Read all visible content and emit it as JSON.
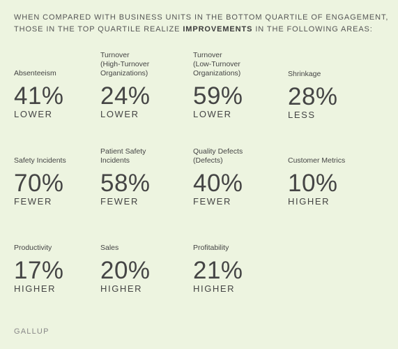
{
  "heading": {
    "part1": "WHEN COMPARED WITH BUSINESS UNITS IN THE BOTTOM QUARTILE OF ENGAGEMENT,",
    "part2": "THOSE IN THE TOP QUARTILE REALIZE",
    "bold": "IMPROVEMENTS",
    "part3": "IN THE FOLLOWING AREAS:"
  },
  "metrics": [
    {
      "label1": "Absenteeism",
      "label2": "",
      "label3": "",
      "value": "41%",
      "direction": "LOWER"
    },
    {
      "label1": "Turnover",
      "label2": "(High-Turnover",
      "label3": "Organizations)",
      "value": "24%",
      "direction": "LOWER"
    },
    {
      "label1": "Turnover",
      "label2": "(Low-Turnover",
      "label3": "Organizations)",
      "value": "59%",
      "direction": "LOWER"
    },
    {
      "label1": "Shrinkage",
      "label2": "",
      "label3": "",
      "value": "28%",
      "direction": "LESS"
    },
    {
      "label1": "Safety Incidents",
      "label2": "",
      "label3": "",
      "value": "70%",
      "direction": "FEWER"
    },
    {
      "label1": "Patient Safety",
      "label2": "Incidents",
      "label3": "",
      "value": "58%",
      "direction": "FEWER"
    },
    {
      "label1": "Quality Defects",
      "label2": "(Defects)",
      "label3": "",
      "value": "40%",
      "direction": "FEWER"
    },
    {
      "label1": "Customer Metrics",
      "label2": "",
      "label3": "",
      "value": "10%",
      "direction": "HIGHER"
    },
    {
      "label1": "Productivity",
      "label2": "",
      "label3": "",
      "value": "17%",
      "direction": "HIGHER"
    },
    {
      "label1": "Sales",
      "label2": "",
      "label3": "",
      "value": "20%",
      "direction": "HIGHER"
    },
    {
      "label1": "Profitability",
      "label2": "",
      "label3": "",
      "value": "21%",
      "direction": "HIGHER"
    }
  ],
  "source": "GALLUP"
}
